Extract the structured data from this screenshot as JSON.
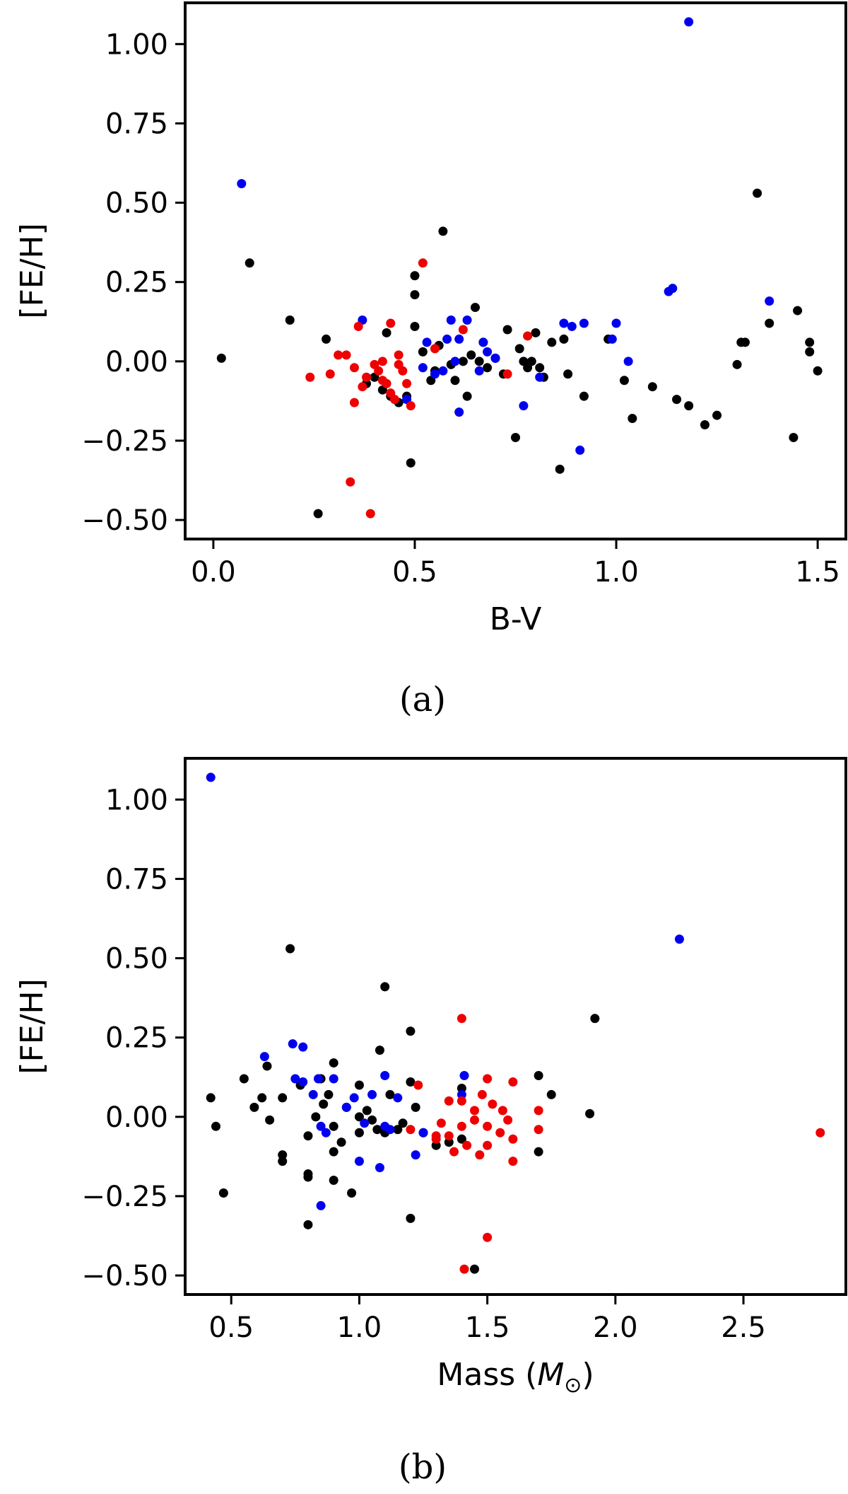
{
  "chart_data": [
    {
      "type": "scatter",
      "panel": "(a)",
      "xlabel": "B-V",
      "ylabel": "[FE/H]",
      "xlim": [
        -0.07,
        1.57
      ],
      "ylim": [
        -0.56,
        1.13
      ],
      "xticks": [
        "0.0",
        "0.5",
        "1.0",
        "1.5"
      ],
      "yticks": [
        "1.00",
        "0.75",
        "0.50",
        "0.25",
        "0.00",
        "−0.25",
        "−0.50"
      ],
      "series": [
        {
          "color": "#000000",
          "points": [
            [
              0.02,
              0.01
            ],
            [
              0.09,
              0.31
            ],
            [
              0.19,
              0.13
            ],
            [
              0.26,
              -0.48
            ],
            [
              0.28,
              0.07
            ],
            [
              0.38,
              -0.07
            ],
            [
              0.4,
              -0.05
            ],
            [
              0.42,
              -0.09
            ],
            [
              0.43,
              0.09
            ],
            [
              0.44,
              -0.11
            ],
            [
              0.46,
              -0.13
            ],
            [
              0.48,
              -0.11
            ],
            [
              0.49,
              -0.32
            ],
            [
              0.5,
              0.11
            ],
            [
              0.5,
              0.21
            ],
            [
              0.5,
              0.27
            ],
            [
              0.52,
              0.03
            ],
            [
              0.54,
              -0.06
            ],
            [
              0.55,
              -0.03
            ],
            [
              0.56,
              0.05
            ],
            [
              0.57,
              0.41
            ],
            [
              0.59,
              -0.01
            ],
            [
              0.6,
              -0.06
            ],
            [
              0.62,
              0.0
            ],
            [
              0.63,
              -0.11
            ],
            [
              0.64,
              0.02
            ],
            [
              0.65,
              0.17
            ],
            [
              0.66,
              0.0
            ],
            [
              0.67,
              0.06
            ],
            [
              0.68,
              -0.02
            ],
            [
              0.7,
              0.01
            ],
            [
              0.72,
              -0.04
            ],
            [
              0.73,
              0.1
            ],
            [
              0.75,
              -0.24
            ],
            [
              0.76,
              0.04
            ],
            [
              0.77,
              0.0
            ],
            [
              0.78,
              -0.02
            ],
            [
              0.79,
              0.0
            ],
            [
              0.8,
              0.09
            ],
            [
              0.81,
              -0.02
            ],
            [
              0.82,
              -0.05
            ],
            [
              0.84,
              0.06
            ],
            [
              0.86,
              -0.34
            ],
            [
              0.87,
              0.07
            ],
            [
              0.88,
              -0.04
            ],
            [
              0.92,
              -0.11
            ],
            [
              0.98,
              0.07
            ],
            [
              1.02,
              -0.06
            ],
            [
              1.04,
              -0.18
            ],
            [
              1.09,
              -0.08
            ],
            [
              1.15,
              -0.12
            ],
            [
              1.18,
              -0.14
            ],
            [
              1.22,
              -0.2
            ],
            [
              1.25,
              -0.17
            ],
            [
              1.3,
              -0.01
            ],
            [
              1.31,
              0.06
            ],
            [
              1.32,
              0.06
            ],
            [
              1.35,
              0.53
            ],
            [
              1.38,
              0.12
            ],
            [
              1.44,
              -0.24
            ],
            [
              1.45,
              0.16
            ],
            [
              1.48,
              0.06
            ],
            [
              1.48,
              0.03
            ],
            [
              1.5,
              -0.03
            ]
          ]
        },
        {
          "color": "#0000ee",
          "points": [
            [
              0.07,
              0.56
            ],
            [
              0.37,
              0.13
            ],
            [
              0.48,
              -0.12
            ],
            [
              0.52,
              -0.02
            ],
            [
              0.53,
              0.06
            ],
            [
              0.55,
              -0.04
            ],
            [
              0.57,
              -0.03
            ],
            [
              0.58,
              0.07
            ],
            [
              0.59,
              0.13
            ],
            [
              0.6,
              0.0
            ],
            [
              0.61,
              -0.16
            ],
            [
              0.61,
              0.07
            ],
            [
              0.63,
              0.13
            ],
            [
              0.66,
              -0.03
            ],
            [
              0.67,
              0.06
            ],
            [
              0.68,
              0.03
            ],
            [
              0.7,
              0.01
            ],
            [
              0.77,
              -0.14
            ],
            [
              0.81,
              -0.05
            ],
            [
              0.87,
              0.12
            ],
            [
              0.89,
              0.11
            ],
            [
              0.91,
              -0.28
            ],
            [
              0.92,
              0.12
            ],
            [
              0.99,
              0.07
            ],
            [
              1.0,
              0.12
            ],
            [
              1.03,
              0.0
            ],
            [
              1.13,
              0.22
            ],
            [
              1.14,
              0.23
            ],
            [
              1.18,
              1.07
            ],
            [
              1.38,
              0.19
            ]
          ]
        },
        {
          "color": "#ee0000",
          "points": [
            [
              0.24,
              -0.05
            ],
            [
              0.29,
              -0.04
            ],
            [
              0.31,
              0.02
            ],
            [
              0.33,
              0.02
            ],
            [
              0.34,
              -0.38
            ],
            [
              0.35,
              -0.02
            ],
            [
              0.35,
              -0.13
            ],
            [
              0.36,
              0.11
            ],
            [
              0.37,
              -0.08
            ],
            [
              0.38,
              -0.05
            ],
            [
              0.39,
              -0.48
            ],
            [
              0.4,
              -0.01
            ],
            [
              0.41,
              -0.03
            ],
            [
              0.42,
              0.0
            ],
            [
              0.42,
              -0.06
            ],
            [
              0.43,
              -0.07
            ],
            [
              0.44,
              0.12
            ],
            [
              0.44,
              -0.1
            ],
            [
              0.45,
              -0.12
            ],
            [
              0.46,
              -0.01
            ],
            [
              0.46,
              0.02
            ],
            [
              0.47,
              -0.03
            ],
            [
              0.48,
              -0.07
            ],
            [
              0.49,
              -0.14
            ],
            [
              0.52,
              0.31
            ],
            [
              0.55,
              0.04
            ],
            [
              0.62,
              0.1
            ],
            [
              0.73,
              -0.04
            ],
            [
              0.78,
              0.08
            ]
          ]
        }
      ]
    },
    {
      "type": "scatter",
      "panel": "(b)",
      "xlabel": "Mass (",
      "xlabel_math": "M",
      "xlabel_sub": "⊙",
      "xlabel_end": ")",
      "ylabel": "[FE/H]",
      "xlim": [
        0.32,
        2.9
      ],
      "ylim": [
        -0.56,
        1.13
      ],
      "xticks": [
        "0.5",
        "1.0",
        "1.5",
        "2.0",
        "2.5"
      ],
      "yticks": [
        "1.00",
        "0.75",
        "0.50",
        "0.25",
        "0.00",
        "−0.25",
        "−0.50"
      ],
      "series": [
        {
          "color": "#000000",
          "points": [
            [
              0.42,
              0.06
            ],
            [
              0.44,
              -0.03
            ],
            [
              0.47,
              -0.24
            ],
            [
              0.55,
              0.12
            ],
            [
              0.59,
              0.03
            ],
            [
              0.62,
              0.06
            ],
            [
              0.64,
              0.16
            ],
            [
              0.65,
              -0.01
            ],
            [
              0.7,
              0.06
            ],
            [
              0.7,
              -0.12
            ],
            [
              0.7,
              -0.14
            ],
            [
              0.73,
              0.53
            ],
            [
              0.77,
              0.1
            ],
            [
              0.8,
              -0.06
            ],
            [
              0.8,
              -0.18
            ],
            [
              0.8,
              -0.19
            ],
            [
              0.8,
              -0.34
            ],
            [
              0.83,
              0.0
            ],
            [
              0.85,
              0.12
            ],
            [
              0.86,
              0.04
            ],
            [
              0.88,
              0.07
            ],
            [
              0.9,
              0.17
            ],
            [
              0.9,
              -0.03
            ],
            [
              0.9,
              -0.11
            ],
            [
              0.9,
              -0.2
            ],
            [
              0.93,
              -0.08
            ],
            [
              0.95,
              0.03
            ],
            [
              0.97,
              -0.24
            ],
            [
              1.0,
              0.1
            ],
            [
              1.0,
              0.0
            ],
            [
              1.0,
              -0.05
            ],
            [
              1.03,
              0.02
            ],
            [
              1.05,
              -0.01
            ],
            [
              1.07,
              -0.04
            ],
            [
              1.08,
              0.21
            ],
            [
              1.1,
              0.41
            ],
            [
              1.1,
              -0.05
            ],
            [
              1.12,
              0.07
            ],
            [
              1.15,
              -0.04
            ],
            [
              1.17,
              -0.02
            ],
            [
              1.2,
              0.27
            ],
            [
              1.2,
              0.11
            ],
            [
              1.2,
              -0.32
            ],
            [
              1.22,
              0.03
            ],
            [
              1.25,
              -0.05
            ],
            [
              1.3,
              -0.09
            ],
            [
              1.35,
              -0.08
            ],
            [
              1.4,
              0.09
            ],
            [
              1.4,
              -0.07
            ],
            [
              1.45,
              -0.48
            ],
            [
              1.7,
              0.13
            ],
            [
              1.7,
              -0.11
            ],
            [
              1.75,
              0.07
            ],
            [
              1.9,
              0.01
            ],
            [
              1.92,
              0.31
            ]
          ]
        },
        {
          "color": "#0000ee",
          "points": [
            [
              0.42,
              1.07
            ],
            [
              0.63,
              0.19
            ],
            [
              0.74,
              0.23
            ],
            [
              0.75,
              0.12
            ],
            [
              0.78,
              0.11
            ],
            [
              0.78,
              0.22
            ],
            [
              0.82,
              0.07
            ],
            [
              0.84,
              0.12
            ],
            [
              0.85,
              -0.03
            ],
            [
              0.85,
              -0.28
            ],
            [
              0.87,
              -0.05
            ],
            [
              0.9,
              0.12
            ],
            [
              0.95,
              0.03
            ],
            [
              0.98,
              0.06
            ],
            [
              1.0,
              -0.14
            ],
            [
              1.02,
              -0.02
            ],
            [
              1.05,
              0.07
            ],
            [
              1.08,
              -0.16
            ],
            [
              1.1,
              -0.03
            ],
            [
              1.1,
              0.13
            ],
            [
              1.12,
              -0.04
            ],
            [
              1.15,
              0.06
            ],
            [
              1.22,
              -0.12
            ],
            [
              1.25,
              -0.05
            ],
            [
              1.4,
              0.07
            ],
            [
              1.41,
              0.13
            ],
            [
              2.25,
              0.56
            ]
          ]
        },
        {
          "color": "#ee0000",
          "points": [
            [
              1.2,
              -0.04
            ],
            [
              1.23,
              0.1
            ],
            [
              1.3,
              -0.07
            ],
            [
              1.3,
              -0.06
            ],
            [
              1.32,
              -0.02
            ],
            [
              1.35,
              0.05
            ],
            [
              1.35,
              -0.06
            ],
            [
              1.37,
              -0.11
            ],
            [
              1.4,
              0.31
            ],
            [
              1.4,
              0.05
            ],
            [
              1.4,
              -0.03
            ],
            [
              1.41,
              -0.48
            ],
            [
              1.42,
              -0.09
            ],
            [
              1.45,
              0.02
            ],
            [
              1.45,
              -0.01
            ],
            [
              1.47,
              -0.12
            ],
            [
              1.48,
              0.07
            ],
            [
              1.5,
              0.12
            ],
            [
              1.5,
              -0.03
            ],
            [
              1.5,
              -0.09
            ],
            [
              1.5,
              -0.38
            ],
            [
              1.52,
              0.04
            ],
            [
              1.55,
              -0.05
            ],
            [
              1.56,
              0.02
            ],
            [
              1.58,
              -0.01
            ],
            [
              1.6,
              0.11
            ],
            [
              1.6,
              -0.07
            ],
            [
              1.6,
              -0.14
            ],
            [
              1.7,
              0.02
            ],
            [
              1.7,
              -0.04
            ],
            [
              2.8,
              -0.05
            ]
          ]
        }
      ]
    }
  ]
}
